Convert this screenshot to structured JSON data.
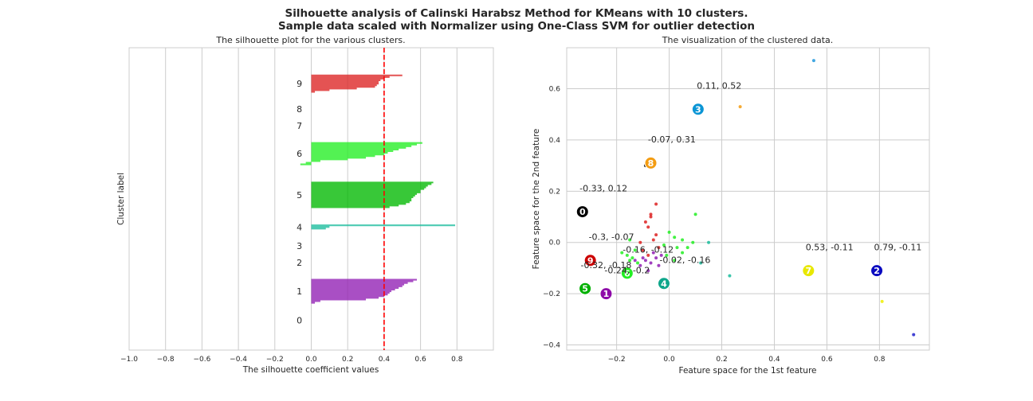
{
  "suptitle": {
    "line1": "Silhouette analysis of Calinski Harabsz Method for KMeans with 10 clusters.",
    "line2": "Sample data scaled with Normalizer using One-Class SVM for outlier detection"
  },
  "chart_data": [
    {
      "type": "silhouette",
      "title": "The silhouette plot for the various clusters.",
      "xlabel": "The silhouette coefficient values",
      "ylabel": "Cluster label",
      "xlim": [
        -1.0,
        1.0
      ],
      "xticks": [
        "−1.0",
        "−0.8",
        "−0.6",
        "−0.4",
        "−0.2",
        "0.0",
        "0.2",
        "0.4",
        "0.6",
        "0.8"
      ],
      "grid": true,
      "average_silhouette_score": 0.4,
      "clusters": [
        {
          "label": "0",
          "color": "#e6194b",
          "values": []
        },
        {
          "label": "1",
          "color": "#911eb4",
          "values": [
            0.58,
            0.56,
            0.53,
            0.51,
            0.5,
            0.48,
            0.46,
            0.44,
            0.43,
            0.42,
            0.4,
            0.37,
            0.3,
            0.05,
            0.02
          ]
        },
        {
          "label": "2",
          "color": "#2222cc",
          "values": []
        },
        {
          "label": "3",
          "color": "#2299dd",
          "values": []
        },
        {
          "label": "4",
          "color": "#1abc9c",
          "values": [
            0.79,
            0.1,
            0.08
          ]
        },
        {
          "label": "5",
          "color": "#00b800",
          "values": [
            0.67,
            0.66,
            0.64,
            0.63,
            0.62,
            0.6,
            0.6,
            0.58,
            0.57,
            0.56,
            0.55,
            0.55,
            0.54,
            0.52,
            0.48,
            0.43
          ]
        },
        {
          "label": "6",
          "color": "#22ee22",
          "values": [
            0.61,
            0.58,
            0.55,
            0.52,
            0.48,
            0.45,
            0.42,
            0.4,
            0.35,
            0.3,
            0.2,
            0.05,
            -0.03,
            -0.06
          ]
        },
        {
          "label": "7",
          "color": "#eeee00",
          "values": []
        },
        {
          "label": "8",
          "color": "#f39c12",
          "values": []
        },
        {
          "label": "9",
          "color": "#dd2222",
          "values": [
            0.5,
            0.43,
            0.4,
            0.38,
            0.37,
            0.37,
            0.36,
            0.35,
            0.25,
            0.1,
            0.02
          ]
        }
      ]
    },
    {
      "type": "scatter",
      "title": "The visualization of the clustered data.",
      "xlabel": "Feature space for the 1st feature",
      "ylabel": "Feature space for the 2nd feature",
      "xlim": [
        -0.39,
        0.99
      ],
      "ylim": [
        -0.42,
        0.76
      ],
      "xticks": [
        -0.2,
        0.0,
        0.2,
        0.4,
        0.6,
        0.8
      ],
      "xtick_labels": [
        "−0.2",
        "0.0",
        "0.2",
        "0.4",
        "0.6",
        "0.8"
      ],
      "yticks": [
        -0.4,
        -0.2,
        0.0,
        0.2,
        0.4,
        0.6
      ],
      "ytick_labels": [
        "−0.4",
        "−0.2",
        "0.0",
        "0.2",
        "0.4",
        "0.6"
      ],
      "grid": true,
      "points": [
        {
          "x": 0.55,
          "y": 0.71,
          "color": "#2299dd"
        },
        {
          "x": 0.27,
          "y": 0.53,
          "color": "#f39c12"
        },
        {
          "x": -0.09,
          "y": 0.3,
          "color": "#111111"
        },
        {
          "x": 0.93,
          "y": -0.36,
          "color": "#2222cc"
        },
        {
          "x": 0.81,
          "y": -0.23,
          "color": "#eeee00"
        },
        {
          "x": -0.07,
          "y": 0.11,
          "color": "#dd2222"
        },
        {
          "x": -0.07,
          "y": 0.1,
          "color": "#dd2222"
        },
        {
          "x": -0.05,
          "y": 0.15,
          "color": "#dd2222"
        },
        {
          "x": -0.09,
          "y": 0.08,
          "color": "#dd2222"
        },
        {
          "x": -0.08,
          "y": 0.06,
          "color": "#dd2222"
        },
        {
          "x": -0.05,
          "y": 0.03,
          "color": "#dd2222"
        },
        {
          "x": -0.06,
          "y": 0.01,
          "color": "#dd2222"
        },
        {
          "x": -0.11,
          "y": 0.0,
          "color": "#dd2222"
        },
        {
          "x": -0.04,
          "y": -0.02,
          "color": "#dd2222"
        },
        {
          "x": -0.1,
          "y": -0.03,
          "color": "#dd2222"
        },
        {
          "x": -0.08,
          "y": -0.05,
          "color": "#dd2222"
        },
        {
          "x": 0.1,
          "y": 0.11,
          "color": "#22ee22"
        },
        {
          "x": 0.0,
          "y": 0.04,
          "color": "#22ee22"
        },
        {
          "x": 0.02,
          "y": 0.02,
          "color": "#22ee22"
        },
        {
          "x": 0.05,
          "y": 0.01,
          "color": "#22ee22"
        },
        {
          "x": 0.09,
          "y": 0.0,
          "color": "#22ee22"
        },
        {
          "x": -0.02,
          "y": -0.01,
          "color": "#22ee22"
        },
        {
          "x": 0.03,
          "y": -0.02,
          "color": "#22ee22"
        },
        {
          "x": 0.07,
          "y": -0.02,
          "color": "#22ee22"
        },
        {
          "x": -0.15,
          "y": 0.01,
          "color": "#22ee22"
        },
        {
          "x": -0.13,
          "y": -0.03,
          "color": "#22ee22"
        },
        {
          "x": -0.18,
          "y": -0.04,
          "color": "#22ee22"
        },
        {
          "x": -0.16,
          "y": -0.05,
          "color": "#22ee22"
        },
        {
          "x": -0.14,
          "y": -0.06,
          "color": "#22ee22"
        },
        {
          "x": -0.12,
          "y": -0.08,
          "color": "#22ee22"
        },
        {
          "x": -0.01,
          "y": -0.05,
          "color": "#22ee22"
        },
        {
          "x": 0.02,
          "y": -0.07,
          "color": "#22ee22"
        },
        {
          "x": 0.05,
          "y": -0.04,
          "color": "#22ee22"
        },
        {
          "x": -0.16,
          "y": -0.1,
          "color": "#22ee22"
        },
        {
          "x": -0.15,
          "y": -0.07,
          "color": "#22ee22"
        },
        {
          "x": -0.1,
          "y": -0.06,
          "color": "#911eb4"
        },
        {
          "x": -0.09,
          "y": -0.07,
          "color": "#911eb4"
        },
        {
          "x": -0.07,
          "y": -0.08,
          "color": "#911eb4"
        },
        {
          "x": -0.06,
          "y": -0.04,
          "color": "#911eb4"
        },
        {
          "x": -0.05,
          "y": -0.06,
          "color": "#911eb4"
        },
        {
          "x": -0.04,
          "y": -0.09,
          "color": "#911eb4"
        },
        {
          "x": -0.08,
          "y": -0.11,
          "color": "#911eb4"
        },
        {
          "x": -0.11,
          "y": -0.09,
          "color": "#911eb4"
        },
        {
          "x": -0.13,
          "y": -0.07,
          "color": "#911eb4"
        },
        {
          "x": -0.03,
          "y": -0.05,
          "color": "#911eb4"
        },
        {
          "x": 0.15,
          "y": 0.0,
          "color": "#1abc9c"
        },
        {
          "x": 0.12,
          "y": -0.08,
          "color": "#1abc9c"
        },
        {
          "x": 0.23,
          "y": -0.13,
          "color": "#1abc9c"
        }
      ],
      "centers": [
        {
          "label": "0",
          "x": -0.33,
          "y": 0.12,
          "color": "#000000",
          "annotation": "-0.33, 0.12"
        },
        {
          "label": "1",
          "x": -0.24,
          "y": -0.2,
          "color": "#8e0aa8",
          "annotation": "-0.24, -0.2"
        },
        {
          "label": "2",
          "x": 0.79,
          "y": -0.11,
          "color": "#0a0ac0",
          "annotation": "0.79, -0.11"
        },
        {
          "label": "3",
          "x": 0.11,
          "y": 0.52,
          "color": "#0b95d5",
          "annotation": "0.11, 0.52"
        },
        {
          "label": "4",
          "x": -0.02,
          "y": -0.16,
          "color": "#0ea68a",
          "annotation": "-0.02, -0.16"
        },
        {
          "label": "5",
          "x": -0.32,
          "y": -0.18,
          "color": "#00b000",
          "annotation": "-0.32, -0.18"
        },
        {
          "label": "6",
          "x": -0.16,
          "y": -0.12,
          "color": "#22ee22",
          "annotation": "-0.16, -0.12"
        },
        {
          "label": "7",
          "x": 0.53,
          "y": -0.11,
          "color": "#e8e800",
          "annotation": "0.53, -0.11"
        },
        {
          "label": "8",
          "x": -0.07,
          "y": 0.31,
          "color": "#f39c12",
          "annotation": "-0.07, 0.31"
        },
        {
          "label": "9",
          "x": -0.3,
          "y": -0.07,
          "color": "#cc0000",
          "annotation": "-0.3, -0.07"
        }
      ]
    }
  ]
}
